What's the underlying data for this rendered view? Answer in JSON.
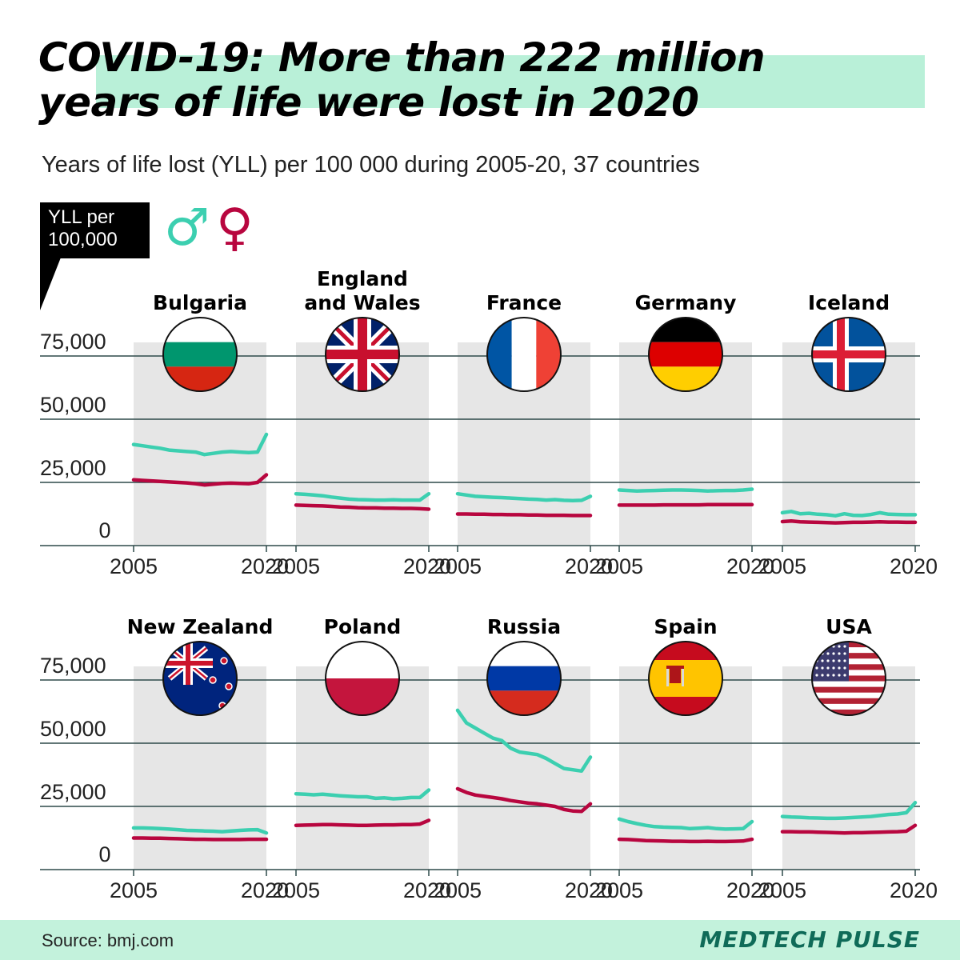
{
  "header": {
    "title_line1": "COVID-19: More than 222 million",
    "title_line2": "years of life were lost in 2020",
    "subtitle": "Years of life lost (YLL) per 100 000 during 2005-20, 37 countries"
  },
  "legend": {
    "unit_line1": "YLL per",
    "unit_line2": "100,000",
    "male_symbol": "♂",
    "female_symbol": "♀",
    "male_color": "#3ccfb0",
    "female_color": "#b8063f"
  },
  "footer": {
    "source": "Source: bmj.com",
    "brand": "MEDTECH PULSE"
  },
  "chart_data": {
    "type": "line",
    "x": [
      2005,
      2006,
      2007,
      2008,
      2009,
      2010,
      2011,
      2012,
      2013,
      2014,
      2015,
      2016,
      2017,
      2018,
      2019,
      2020
    ],
    "x_ticks": [
      "2005",
      "2020"
    ],
    "y_ticks": [
      "0",
      "25,000",
      "50,000",
      "75,000"
    ],
    "y_tick_values": [
      0,
      25000,
      50000,
      75000
    ],
    "ylim": [
      0,
      80000
    ],
    "grid": true,
    "panels": [
      {
        "country": "Bulgaria",
        "flag": "bulgaria",
        "male": [
          40000,
          39500,
          39000,
          38500,
          37800,
          37500,
          37200,
          37000,
          36000,
          36500,
          37000,
          37200,
          37000,
          36800,
          37000,
          44000
        ],
        "female": [
          26000,
          25800,
          25600,
          25400,
          25200,
          25000,
          24800,
          24500,
          24000,
          24300,
          24600,
          24700,
          24600,
          24500,
          25000,
          28000
        ]
      },
      {
        "country": "England\nand Wales",
        "flag": "uk",
        "male": [
          20500,
          20300,
          20000,
          19700,
          19200,
          18800,
          18400,
          18200,
          18100,
          18000,
          18000,
          18100,
          18000,
          18000,
          18000,
          20500
        ],
        "female": [
          16000,
          15900,
          15800,
          15700,
          15500,
          15300,
          15200,
          15000,
          14900,
          14900,
          14800,
          14800,
          14700,
          14700,
          14600,
          14400
        ]
      },
      {
        "country": "France",
        "flag": "france",
        "male": [
          20500,
          20000,
          19500,
          19300,
          19100,
          19000,
          18800,
          18600,
          18400,
          18300,
          18000,
          18200,
          17900,
          17800,
          17900,
          19500
        ],
        "female": [
          12500,
          12500,
          12400,
          12400,
          12300,
          12300,
          12200,
          12200,
          12100,
          12100,
          12000,
          12000,
          12000,
          11900,
          11900,
          11900
        ]
      },
      {
        "country": "Germany",
        "flag": "germany",
        "male": [
          22000,
          21800,
          21600,
          21700,
          21800,
          21900,
          22000,
          22000,
          21900,
          21800,
          21600,
          21700,
          21800,
          21800,
          22000,
          22300
        ],
        "female": [
          16000,
          16000,
          16000,
          16000,
          16000,
          16100,
          16100,
          16100,
          16100,
          16100,
          16200,
          16200,
          16200,
          16200,
          16200,
          16200
        ]
      },
      {
        "country": "Iceland",
        "flag": "iceland",
        "male": [
          13000,
          13500,
          12600,
          12800,
          12400,
          12200,
          11800,
          12600,
          12000,
          11900,
          12300,
          13000,
          12400,
          12300,
          12200,
          12200
        ],
        "female": [
          9500,
          9700,
          9400,
          9300,
          9200,
          9100,
          9000,
          9100,
          9200,
          9200,
          9300,
          9400,
          9300,
          9300,
          9200,
          9200
        ]
      },
      {
        "country": "New Zealand",
        "flag": "new_zealand",
        "male": [
          16500,
          16500,
          16400,
          16200,
          16000,
          15800,
          15500,
          15400,
          15300,
          15200,
          15000,
          15300,
          15500,
          15700,
          15800,
          14500
        ],
        "female": [
          12500,
          12500,
          12400,
          12400,
          12300,
          12200,
          12100,
          12000,
          12000,
          11900,
          11900,
          11900,
          11900,
          12000,
          12000,
          12000
        ]
      },
      {
        "country": "Poland",
        "flag": "poland",
        "male": [
          30000,
          29800,
          29600,
          29800,
          29500,
          29200,
          29000,
          28800,
          28800,
          28200,
          28400,
          28000,
          28200,
          28500,
          28500,
          31500
        ],
        "female": [
          17500,
          17600,
          17700,
          17800,
          17800,
          17700,
          17600,
          17500,
          17500,
          17600,
          17700,
          17700,
          17800,
          17800,
          18000,
          19500
        ]
      },
      {
        "country": "Russia",
        "flag": "russia",
        "male": [
          63000,
          58000,
          56000,
          54000,
          52000,
          51000,
          48000,
          46500,
          46000,
          45500,
          44000,
          42000,
          40000,
          39500,
          39000,
          44500
        ],
        "female": [
          32000,
          30500,
          29500,
          29000,
          28500,
          28000,
          27300,
          26800,
          26300,
          26000,
          25500,
          25000,
          23800,
          23200,
          23000,
          26000
        ]
      },
      {
        "country": "Spain",
        "flag": "spain",
        "male": [
          20000,
          19000,
          18200,
          17500,
          17000,
          16800,
          16700,
          16600,
          16200,
          16400,
          16600,
          16200,
          16000,
          16100,
          16200,
          19000
        ],
        "female": [
          12000,
          11900,
          11700,
          11500,
          11400,
          11300,
          11200,
          11200,
          11100,
          11100,
          11200,
          11100,
          11100,
          11200,
          11300,
          12000
        ]
      },
      {
        "country": "USA",
        "flag": "usa",
        "male": [
          21000,
          20800,
          20700,
          20500,
          20400,
          20300,
          20300,
          20400,
          20600,
          20800,
          21000,
          21400,
          21800,
          22000,
          22500,
          26500
        ],
        "female": [
          15000,
          15000,
          14900,
          14900,
          14800,
          14700,
          14600,
          14500,
          14600,
          14600,
          14700,
          14800,
          14900,
          15000,
          15200,
          17500
        ]
      }
    ]
  }
}
